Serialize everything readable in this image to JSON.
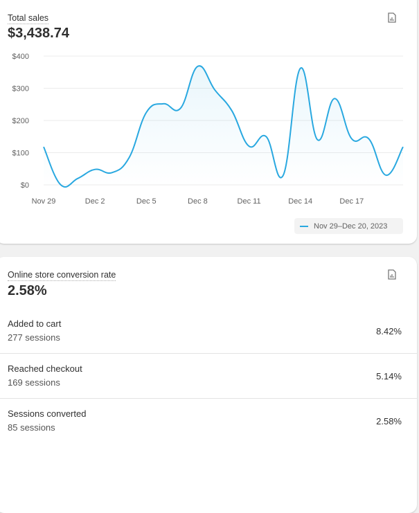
{
  "sales": {
    "title": "Total sales",
    "value": "$3,438.74",
    "legend": "Nov 29–Dec 20, 2023"
  },
  "chart_data": {
    "type": "line",
    "title": "Total sales",
    "xlabel": "",
    "ylabel": "",
    "ylim": [
      0,
      400
    ],
    "yticks": [
      "$400",
      "$300",
      "$200",
      "$100",
      "$0"
    ],
    "xtick_labels": [
      "Nov 29",
      "Dec 2",
      "Dec 5",
      "Dec 8",
      "Dec 11",
      "Dec 14",
      "Dec 17"
    ],
    "x": [
      "Nov 29",
      "Nov 30",
      "Dec 1",
      "Dec 2",
      "Dec 3",
      "Dec 4",
      "Dec 5",
      "Dec 6",
      "Dec 7",
      "Dec 8",
      "Dec 9",
      "Dec 10",
      "Dec 11",
      "Dec 12",
      "Dec 13",
      "Dec 14",
      "Dec 15",
      "Dec 16",
      "Dec 17",
      "Dec 18",
      "Dec 19",
      "Dec 20"
    ],
    "series": [
      {
        "name": "Nov 29–Dec 20, 2023",
        "color": "#29a8e0",
        "values": [
          118,
          0,
          20,
          48,
          38,
          85,
          225,
          252,
          238,
          368,
          295,
          230,
          120,
          150,
          30,
          362,
          140,
          268,
          143,
          143,
          30,
          118
        ]
      }
    ],
    "grid": true,
    "legend_position": "bottom-right"
  },
  "conversion": {
    "title": "Online store conversion rate",
    "value": "2.58%",
    "rows": [
      {
        "label": "Added to cart",
        "sessions": "277 sessions",
        "pct": "8.42%"
      },
      {
        "label": "Reached checkout",
        "sessions": "169 sessions",
        "pct": "5.14%"
      },
      {
        "label": "Sessions converted",
        "sessions": "85 sessions",
        "pct": "2.58%"
      }
    ]
  }
}
